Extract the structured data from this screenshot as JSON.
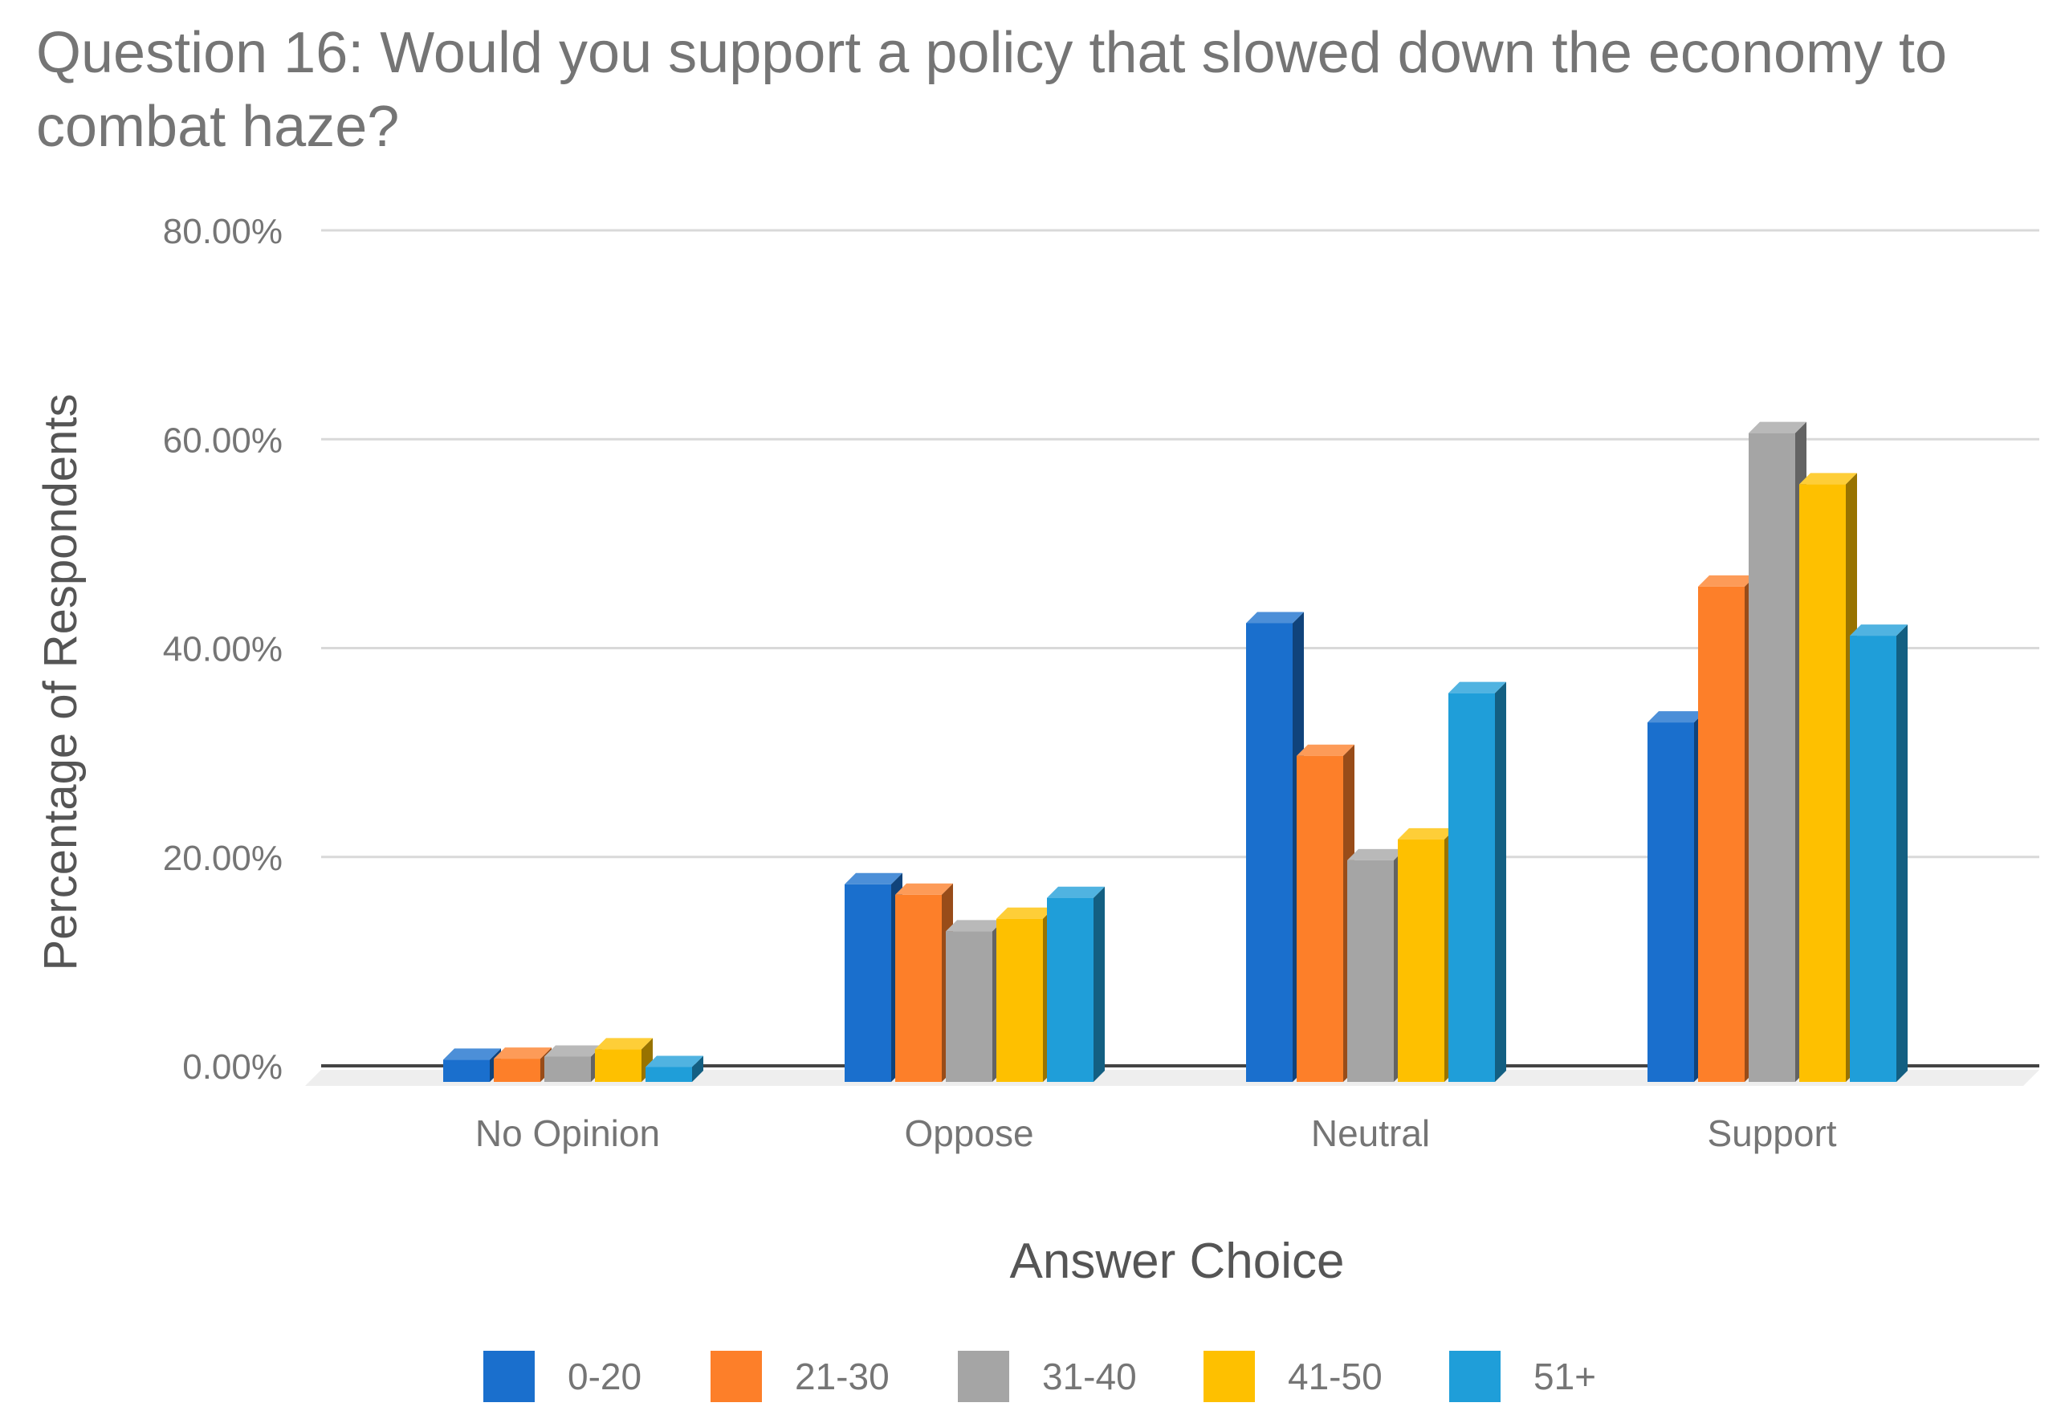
{
  "chart_data": {
    "type": "bar",
    "title": "Question 16: Would you support a policy that slowed down the economy to combat haze?",
    "title_lines": [
      "Question 16: Would you support a policy that slowed down the economy to",
      "combat haze?"
    ],
    "xlabel": "Answer Choice",
    "ylabel": "Percentage of Respondents",
    "categories": [
      "No Opinion",
      "Oppose",
      "Neutral",
      "Support"
    ],
    "series": [
      {
        "name": "0-20",
        "color": "#1a6fcd",
        "values": [
          1.2,
          18.0,
          43.0,
          33.5
        ]
      },
      {
        "name": "21-30",
        "color": "#fd7f29",
        "values": [
          1.3,
          17.0,
          30.3,
          46.5
        ]
      },
      {
        "name": "31-40",
        "color": "#a5a5a5",
        "values": [
          1.5,
          13.5,
          20.3,
          61.2
        ]
      },
      {
        "name": "41-50",
        "color": "#fec000",
        "values": [
          2.2,
          14.7,
          22.3,
          56.3
        ]
      },
      {
        "name": "51+",
        "color": "#1f9ed9",
        "values": [
          0.5,
          16.7,
          36.3,
          41.8
        ]
      }
    ],
    "ylim": [
      0,
      80
    ],
    "yticks": [
      "0.00%",
      "20.00%",
      "40.00%",
      "60.00%",
      "80.00%"
    ],
    "ytick_values": [
      0,
      20,
      40,
      60,
      80
    ],
    "grid": true,
    "legend_position": "bottom",
    "style": "3d-column"
  }
}
